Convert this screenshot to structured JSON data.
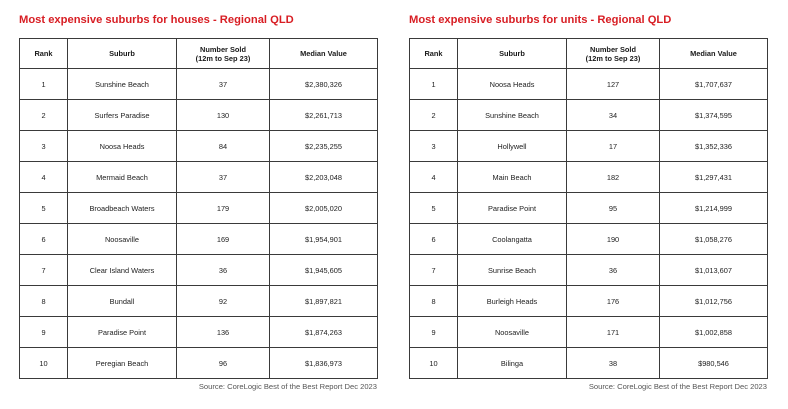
{
  "houses": {
    "title": "Most expensive suburbs for houses - Regional QLD",
    "headers": {
      "rank": "Rank",
      "suburb": "Suburb",
      "sold_line1": "Number Sold",
      "sold_line2": "(12m to Sep 23)",
      "value": "Median Value"
    },
    "rows": [
      {
        "rank": "1",
        "suburb": "Sunshine Beach",
        "sold": "37",
        "value": "$2,380,326"
      },
      {
        "rank": "2",
        "suburb": "Surfers Paradise",
        "sold": "130",
        "value": "$2,261,713"
      },
      {
        "rank": "3",
        "suburb": "Noosa Heads",
        "sold": "84",
        "value": "$2,235,255"
      },
      {
        "rank": "4",
        "suburb": "Mermaid Beach",
        "sold": "37",
        "value": "$2,203,048"
      },
      {
        "rank": "5",
        "suburb": "Broadbeach Waters",
        "sold": "179",
        "value": "$2,005,020"
      },
      {
        "rank": "6",
        "suburb": "Noosaville",
        "sold": "169",
        "value": "$1,954,901"
      },
      {
        "rank": "7",
        "suburb": "Clear Island Waters",
        "sold": "36",
        "value": "$1,945,605"
      },
      {
        "rank": "8",
        "suburb": "Bundall",
        "sold": "92",
        "value": "$1,897,821"
      },
      {
        "rank": "9",
        "suburb": "Paradise Point",
        "sold": "136",
        "value": "$1,874,263"
      },
      {
        "rank": "10",
        "suburb": "Peregian Beach",
        "sold": "96",
        "value": "$1,836,973"
      }
    ],
    "source": "Source: CoreLogic Best of the Best Report Dec 2023"
  },
  "units": {
    "title": "Most expensive suburbs for units - Regional QLD",
    "headers": {
      "rank": "Rank",
      "suburb": "Suburb",
      "sold_line1": "Number Sold",
      "sold_line2": "(12m to Sep 23)",
      "value": "Median Value"
    },
    "rows": [
      {
        "rank": "1",
        "suburb": "Noosa Heads",
        "sold": "127",
        "value": "$1,707,637"
      },
      {
        "rank": "2",
        "suburb": "Sunshine Beach",
        "sold": "34",
        "value": "$1,374,595"
      },
      {
        "rank": "3",
        "suburb": "Hollywell",
        "sold": "17",
        "value": "$1,352,336"
      },
      {
        "rank": "4",
        "suburb": "Main Beach",
        "sold": "182",
        "value": "$1,297,431"
      },
      {
        "rank": "5",
        "suburb": "Paradise Point",
        "sold": "95",
        "value": "$1,214,999"
      },
      {
        "rank": "6",
        "suburb": "Coolangatta",
        "sold": "190",
        "value": "$1,058,276"
      },
      {
        "rank": "7",
        "suburb": "Sunrise Beach",
        "sold": "36",
        "value": "$1,013,607"
      },
      {
        "rank": "8",
        "suburb": "Burleigh Heads",
        "sold": "176",
        "value": "$1,012,756"
      },
      {
        "rank": "9",
        "suburb": "Noosaville",
        "sold": "171",
        "value": "$1,002,858"
      },
      {
        "rank": "10",
        "suburb": "Bilinga",
        "sold": "38",
        "value": "$980,546"
      }
    ],
    "source": "Source: CoreLogic Best of the Best Report Dec 2023"
  },
  "colors": {
    "title_red": "#d81e24",
    "border": "#3a3a3a",
    "source_gray": "#555555"
  }
}
